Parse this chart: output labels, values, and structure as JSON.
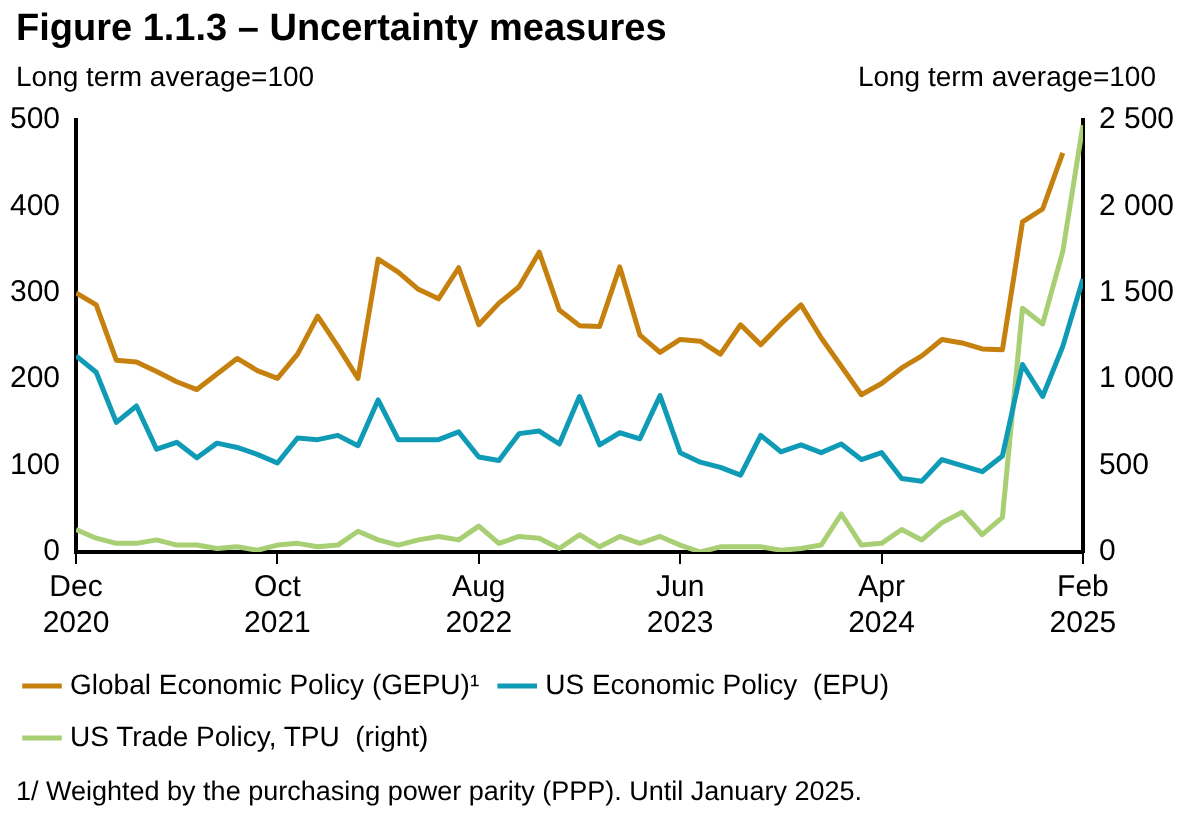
{
  "chart_data": {
    "type": "line",
    "title": "Figure 1.1.3 – Uncertainty measures",
    "ylabel": "Long term average=100",
    "y2label": "Long term average=100",
    "x": [
      "2020-12",
      "2021-01",
      "2021-02",
      "2021-03",
      "2021-04",
      "2021-05",
      "2021-06",
      "2021-07",
      "2021-08",
      "2021-09",
      "2021-10",
      "2021-11",
      "2021-12",
      "2022-01",
      "2022-02",
      "2022-03",
      "2022-04",
      "2022-05",
      "2022-06",
      "2022-07",
      "2022-08",
      "2022-09",
      "2022-10",
      "2022-11",
      "2022-12",
      "2023-01",
      "2023-02",
      "2023-03",
      "2023-04",
      "2023-05",
      "2023-06",
      "2023-07",
      "2023-08",
      "2023-09",
      "2023-10",
      "2023-11",
      "2023-12",
      "2024-01",
      "2024-02",
      "2024-03",
      "2024-04",
      "2024-05",
      "2024-06",
      "2024-07",
      "2024-08",
      "2024-09",
      "2024-10",
      "2024-11",
      "2024-12",
      "2025-01",
      "2025-02"
    ],
    "series": [
      {
        "name": "Global Economic Policy (GEPU)¹",
        "color": "#c5800e",
        "values": [
          300,
          286,
          222,
          220,
          209,
          197,
          188,
          206,
          224,
          210,
          201,
          229,
          273,
          238,
          201,
          339,
          324,
          304,
          293,
          329,
          263,
          288,
          307,
          347,
          280,
          262,
          261,
          330,
          251,
          231,
          246,
          244,
          229,
          263,
          240,
          264,
          286,
          248,
          215,
          182,
          195,
          213,
          227,
          246,
          242,
          235,
          234,
          382,
          397,
          462,
          null
        ]
      },
      {
        "name": "US Economic Policy  (EPU)",
        "color": "#0f9bb5",
        "values": [
          227,
          208,
          150,
          169,
          119,
          127,
          109,
          126,
          121,
          113,
          103,
          132,
          130,
          135,
          123,
          176,
          130,
          130,
          130,
          139,
          110,
          106,
          137,
          140,
          125,
          180,
          124,
          138,
          131,
          181,
          115,
          104,
          98,
          89,
          135,
          116,
          124,
          115,
          125,
          107,
          115,
          85,
          82,
          107,
          100,
          93,
          111,
          217,
          180,
          238,
          316
        ]
      },
      {
        "name": "US Trade Policy, TPU  (right)",
        "color": "#a9cf74",
        "axis": "y2",
        "values": [
          130,
          80,
          50,
          50,
          70,
          40,
          40,
          20,
          30,
          10,
          40,
          50,
          30,
          40,
          120,
          70,
          40,
          70,
          90,
          70,
          150,
          50,
          90,
          80,
          20,
          100,
          30,
          90,
          50,
          90,
          40,
          0,
          30,
          30,
          30,
          10,
          20,
          40,
          220,
          40,
          50,
          130,
          70,
          170,
          230,
          100,
          200,
          1410,
          1320,
          1740,
          2470
        ]
      }
    ],
    "xlim": [
      "2020-12",
      "2025-02"
    ],
    "xticks": [
      {
        "value": "2020-12",
        "label": "Dec 2020"
      },
      {
        "value": "2021-10",
        "label": "Oct 2021"
      },
      {
        "value": "2022-08",
        "label": "Aug 2022"
      },
      {
        "value": "2023-06",
        "label": "Jun 2023"
      },
      {
        "value": "2024-04",
        "label": "Apr 2024"
      },
      {
        "value": "2025-02",
        "label": "Feb 2025"
      }
    ],
    "ylim": [
      0,
      500
    ],
    "yticks": [
      0,
      100,
      200,
      300,
      400,
      500
    ],
    "y2lim": [
      0,
      2500
    ],
    "y2ticks": [
      0,
      {
        "value": 500,
        "label": "500"
      },
      {
        "value": 1000,
        "label": "1 000"
      },
      {
        "value": 1500,
        "label": "1 500"
      },
      {
        "value": 2000,
        "label": "2 000"
      },
      {
        "value": 2500,
        "label": "2 500"
      }
    ],
    "grid": false,
    "legend": "bottom",
    "marker": "none",
    "line_style": "solid",
    "annotations": [
      "1/ Weighted by the purchasing power parity (PPP). Until January 2025."
    ]
  }
}
